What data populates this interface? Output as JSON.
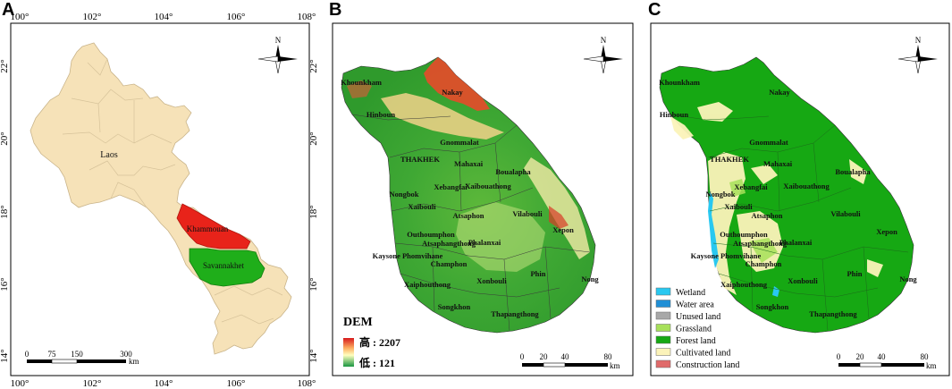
{
  "panels": {
    "a": {
      "letter": "A",
      "lon_ticks": [
        "100°",
        "102°",
        "104°",
        "106°",
        "108°"
      ],
      "lat_ticks": [
        "22°",
        "20°",
        "18°",
        "16°",
        "14°"
      ],
      "labels": {
        "laos": "Laos",
        "khammouan": "Khammouan",
        "savannakhet": "Savannakhet"
      },
      "north": "N",
      "scalebar": {
        "ticks": [
          "0",
          "75",
          "150",
          "300"
        ],
        "unit": "km"
      },
      "colors": {
        "laos": "#f6e2b8",
        "khammouan": "#e8231a",
        "savannakhet": "#1fae1a"
      }
    },
    "b": {
      "letter": "B",
      "north": "N",
      "dem": {
        "title": "DEM",
        "high": "高 : 2207",
        "low": "低 : 121"
      },
      "scalebar": {
        "ticks": [
          "0",
          "20",
          "40",
          "80"
        ],
        "unit": "km"
      }
    },
    "c": {
      "letter": "C",
      "north": "N",
      "scalebar": {
        "ticks": [
          "0",
          "20",
          "40",
          "80"
        ],
        "unit": "km"
      },
      "legend": [
        {
          "label": "Wetland",
          "color": "#29c8f0"
        },
        {
          "label": "Water area",
          "color": "#1f8fd6"
        },
        {
          "label": "Unused land",
          "color": "#a8a8a8"
        },
        {
          "label": "Grassland",
          "color": "#a7e05a"
        },
        {
          "label": "Forest land",
          "color": "#16a813"
        },
        {
          "label": "Cultivated land",
          "color": "#fbf3b9"
        },
        {
          "label": "Construction land",
          "color": "#e06a6a"
        }
      ]
    }
  },
  "places": {
    "khounkham": "Khounkham",
    "nakay": "Nakay",
    "hinboun": "Hinboun",
    "gnommalat": "Gnommalat",
    "thakhek": "THAKHEK",
    "mahaxai": "Mahaxai",
    "boualapha": "Boualapha",
    "xebangfai": "Xebangfai",
    "nongbok": "Nongbok",
    "xaibouathong": "Xaibouathong",
    "xaibouli": "Xaibouli",
    "atsaphon": "Atsaphon",
    "vilabouli": "Vilabouli",
    "outhoumphon": "Outhoumphon",
    "atsaphangthong": "Atsaphangthong",
    "phalanxai": "Phalanxai",
    "xepon": "Xepon",
    "kaysone": "Kaysone Phomvihane",
    "champhon": "Champhon",
    "phin": "Phin",
    "xaiphouthong": "Xaiphouthong",
    "xonbouli": "Xonbouli",
    "nong": "Nong",
    "songkhon": "Songkhon",
    "thapangthong": "Thapangthong"
  }
}
